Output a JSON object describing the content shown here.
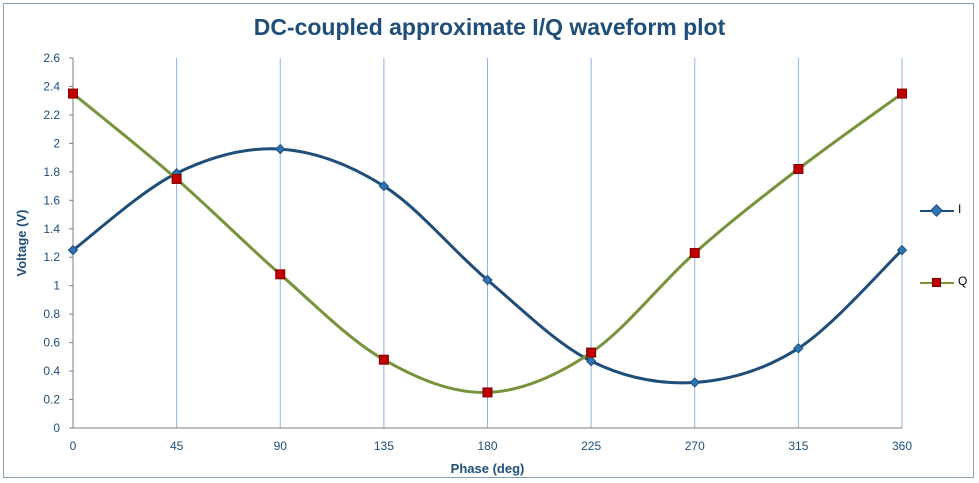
{
  "chart_data": {
    "type": "line",
    "title": "DC-coupled approximate I/Q waveform plot",
    "xlabel": "Phase (deg)",
    "ylabel": "Voltage (V)",
    "x": [
      0,
      45,
      90,
      135,
      180,
      225,
      270,
      315,
      360
    ],
    "xticks": [
      "0",
      "45",
      "90",
      "135",
      "180",
      "225",
      "270",
      "315",
      "360"
    ],
    "yticks": [
      "0",
      "0.2",
      "0.4",
      "0.6",
      "0.8",
      "1",
      "1.2",
      "1.4",
      "1.6",
      "1.8",
      "2",
      "2.2",
      "2.4",
      "2.6"
    ],
    "xlim": [
      0,
      360
    ],
    "ylim": [
      0,
      2.6
    ],
    "grid": "vertical",
    "legend_position": "right",
    "series": [
      {
        "name": "I",
        "color": "#1f4e79",
        "marker": "diamond",
        "marker_color": "#2e75b6",
        "values": [
          1.25,
          1.79,
          1.96,
          1.7,
          1.04,
          0.47,
          0.32,
          0.56,
          1.25
        ]
      },
      {
        "name": "Q",
        "color": "#77933c",
        "marker": "square",
        "marker_color": "#c00000",
        "values": [
          2.35,
          1.75,
          1.08,
          0.48,
          0.25,
          0.53,
          1.23,
          1.82,
          2.35
        ]
      }
    ]
  }
}
